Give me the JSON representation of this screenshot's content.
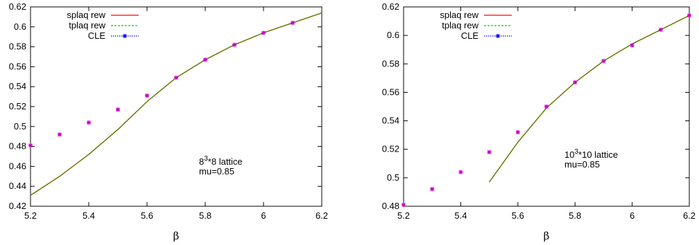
{
  "chart_data": [
    {
      "type": "line",
      "xlabel": "β",
      "ylabel": "",
      "xlim": [
        5.2,
        6.2
      ],
      "ylim": [
        0.42,
        0.62
      ],
      "xticks": [
        "5.2",
        "5.4",
        "5.6",
        "5.8",
        "6",
        "6.2"
      ],
      "yticks": [
        "0.42",
        "0.44",
        "0.46",
        "0.48",
        "0.5",
        "0.52",
        "0.54",
        "0.56",
        "0.58",
        "0.6",
        "0.62"
      ],
      "legend_position": "top-left",
      "grid": false,
      "annotation": {
        "base": "8",
        "exp": "3",
        "rest": "*8 lattice",
        "line2": "mu=0.85"
      },
      "series": [
        {
          "name": "splaq rew",
          "style": "line",
          "color": "#ff0000",
          "x": [
            5.2,
            5.3,
            5.4,
            5.5,
            5.6,
            5.7,
            5.8,
            5.9,
            6.0,
            6.1,
            6.2
          ],
          "y": [
            0.431,
            0.45,
            0.472,
            0.497,
            0.525,
            0.549,
            0.567,
            0.582,
            0.594,
            0.604,
            0.614
          ]
        },
        {
          "name": "tplaq rew",
          "style": "dashed",
          "color": "#00cc00",
          "x": [
            5.2,
            5.3,
            5.4,
            5.5,
            5.6,
            5.7,
            5.8,
            5.9,
            6.0,
            6.1,
            6.2
          ],
          "y": [
            0.431,
            0.45,
            0.472,
            0.497,
            0.525,
            0.549,
            0.567,
            0.582,
            0.594,
            0.604,
            0.614
          ]
        },
        {
          "name": "CLE",
          "style": "points",
          "color": "#0000ff",
          "x": [
            5.2,
            5.3,
            5.4,
            5.5,
            5.6,
            5.7,
            5.8,
            5.9,
            6.0,
            6.1
          ],
          "y": [
            0.481,
            0.492,
            0.504,
            0.517,
            0.531,
            0.549,
            0.567,
            0.582,
            0.594,
            0.604
          ]
        }
      ]
    },
    {
      "type": "line",
      "xlabel": "β",
      "ylabel": "",
      "xlim": [
        5.2,
        6.2
      ],
      "ylim": [
        0.48,
        0.62
      ],
      "xticks": [
        "5.2",
        "5.4",
        "5.6",
        "5.8",
        "6",
        "6.2"
      ],
      "yticks": [
        "0.48",
        "0.5",
        "0.52",
        "0.54",
        "0.56",
        "0.58",
        "0.6",
        "0.62"
      ],
      "legend_position": "top-left",
      "grid": false,
      "annotation": {
        "base": "10",
        "exp": "3",
        "rest": "*10 lattice",
        "line2": "mu=0.85"
      },
      "series": [
        {
          "name": "splaq rew",
          "style": "line",
          "color": "#ff0000",
          "x": [
            5.5,
            5.6,
            5.7,
            5.8,
            5.9,
            6.0,
            6.1,
            6.2
          ],
          "y": [
            0.497,
            0.525,
            0.549,
            0.567,
            0.582,
            0.594,
            0.604,
            0.614
          ]
        },
        {
          "name": "tplaq rew",
          "style": "dashed",
          "color": "#00cc00",
          "x": [
            5.5,
            5.6,
            5.7,
            5.8,
            5.9,
            6.0,
            6.1,
            6.2
          ],
          "y": [
            0.497,
            0.525,
            0.549,
            0.567,
            0.582,
            0.594,
            0.604,
            0.614
          ]
        },
        {
          "name": "CLE",
          "style": "points",
          "color": "#0000ff",
          "x": [
            5.2,
            5.3,
            5.4,
            5.5,
            5.6,
            5.7,
            5.8,
            5.9,
            6.0,
            6.1,
            6.2
          ],
          "y": [
            0.481,
            0.492,
            0.504,
            0.518,
            0.532,
            0.55,
            0.567,
            0.582,
            0.593,
            0.604,
            0.614
          ]
        }
      ]
    }
  ],
  "marker_color": "#cc00cc",
  "overlap_line_color": "#667700"
}
